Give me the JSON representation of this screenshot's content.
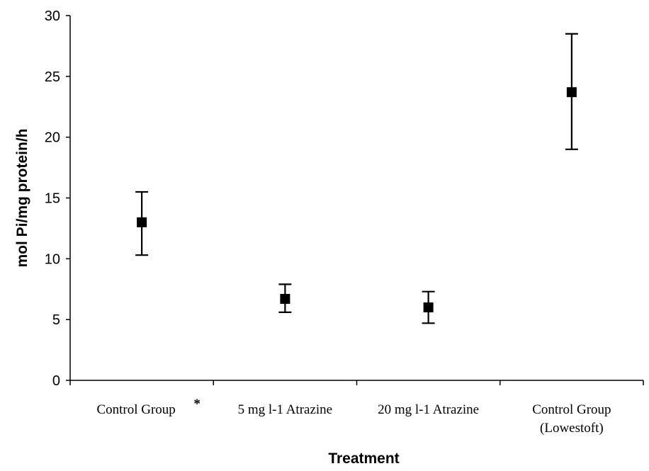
{
  "chart_data": {
    "type": "scatter",
    "title": "",
    "xlabel": "Treatment",
    "ylabel": "mol Pi/mg protein/h",
    "ylim": [
      0,
      30
    ],
    "yticks": [
      0,
      5,
      10,
      15,
      20,
      25,
      30
    ],
    "grid": false,
    "legend": "none",
    "categories": [
      [
        "Control Group",
        "*"
      ],
      [
        "5 mg l-1 Atrazine"
      ],
      [
        "20 mg l-1 Atrazine"
      ],
      [
        "Control Group",
        "(Lowestoft)"
      ]
    ],
    "series": [
      {
        "marker": "square",
        "color": "#000000",
        "values": [
          13.0,
          6.7,
          6.0,
          23.7
        ],
        "error_low": [
          10.3,
          5.6,
          4.7,
          19.0
        ],
        "error_high": [
          15.5,
          7.9,
          7.3,
          28.5
        ]
      }
    ]
  }
}
